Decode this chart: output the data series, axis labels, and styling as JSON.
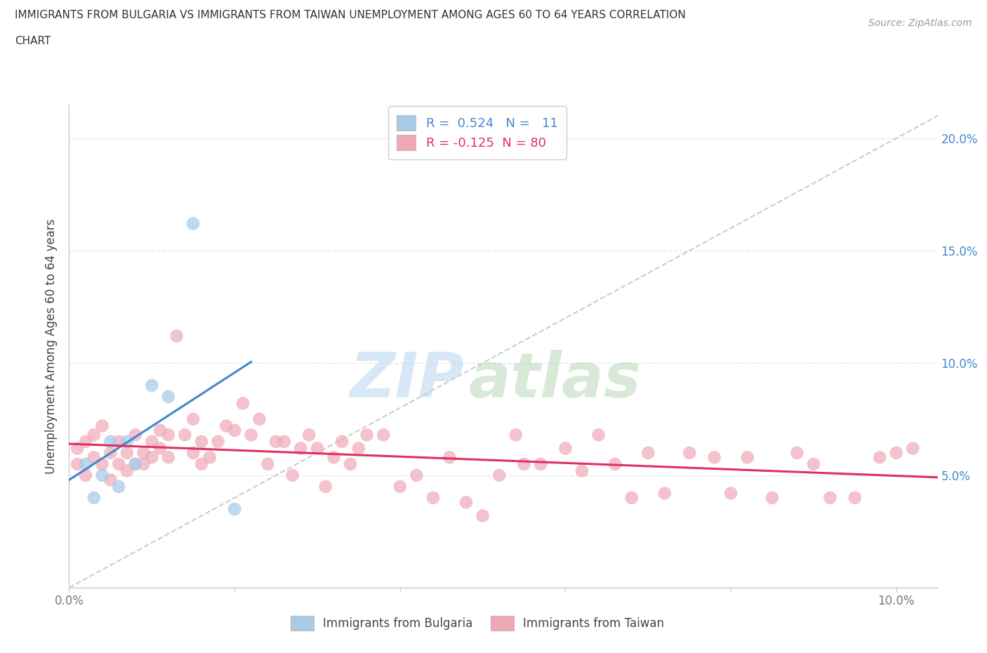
{
  "title_line1": "IMMIGRANTS FROM BULGARIA VS IMMIGRANTS FROM TAIWAN UNEMPLOYMENT AMONG AGES 60 TO 64 YEARS CORRELATION",
  "title_line2": "CHART",
  "source": "Source: ZipAtlas.com",
  "ylabel": "Unemployment Among Ages 60 to 64 years",
  "xlim": [
    0.0,
    0.105
  ],
  "ylim": [
    0.0,
    0.215
  ],
  "ytick_vals": [
    0.0,
    0.05,
    0.1,
    0.15,
    0.2
  ],
  "ytick_labels": [
    "",
    "5.0%",
    "10.0%",
    "15.0%",
    "20.0%"
  ],
  "xtick_vals": [
    0.0,
    0.02,
    0.04,
    0.06,
    0.08,
    0.1
  ],
  "xtick_labels": [
    "0.0%",
    "",
    "",
    "",
    "",
    "10.0%"
  ],
  "bg_color": "#ffffff",
  "grid_color": "#e0e8f0",
  "R_bulgaria": 0.524,
  "N_bulgaria": 11,
  "R_taiwan": -0.125,
  "N_taiwan": 80,
  "bulgaria_fill": "#a8cce8",
  "taiwan_fill": "#f0a8b8",
  "bulgaria_line": "#4488cc",
  "taiwan_line": "#e03060",
  "diagonal_color": "#c0c8d0",
  "bulgaria_x": [
    0.002,
    0.003,
    0.004,
    0.005,
    0.006,
    0.007,
    0.008,
    0.01,
    0.012,
    0.015,
    0.02
  ],
  "bulgaria_y": [
    0.055,
    0.04,
    0.05,
    0.065,
    0.045,
    0.065,
    0.055,
    0.09,
    0.085,
    0.162,
    0.035
  ],
  "taiwan_x": [
    0.001,
    0.001,
    0.002,
    0.002,
    0.003,
    0.003,
    0.004,
    0.004,
    0.005,
    0.005,
    0.006,
    0.006,
    0.007,
    0.007,
    0.008,
    0.008,
    0.009,
    0.009,
    0.01,
    0.01,
    0.011,
    0.011,
    0.012,
    0.012,
    0.013,
    0.014,
    0.015,
    0.015,
    0.016,
    0.016,
    0.017,
    0.018,
    0.019,
    0.02,
    0.021,
    0.022,
    0.023,
    0.024,
    0.025,
    0.026,
    0.027,
    0.028,
    0.029,
    0.03,
    0.031,
    0.032,
    0.033,
    0.034,
    0.035,
    0.036,
    0.038,
    0.04,
    0.042,
    0.044,
    0.046,
    0.048,
    0.05,
    0.052,
    0.054,
    0.055,
    0.057,
    0.06,
    0.062,
    0.064,
    0.066,
    0.068,
    0.07,
    0.072,
    0.075,
    0.078,
    0.08,
    0.082,
    0.085,
    0.088,
    0.09,
    0.092,
    0.095,
    0.098,
    0.1,
    0.102
  ],
  "taiwan_y": [
    0.055,
    0.062,
    0.05,
    0.065,
    0.058,
    0.068,
    0.055,
    0.072,
    0.06,
    0.048,
    0.065,
    0.055,
    0.06,
    0.052,
    0.055,
    0.068,
    0.06,
    0.055,
    0.065,
    0.058,
    0.062,
    0.07,
    0.058,
    0.068,
    0.112,
    0.068,
    0.06,
    0.075,
    0.065,
    0.055,
    0.058,
    0.065,
    0.072,
    0.07,
    0.082,
    0.068,
    0.075,
    0.055,
    0.065,
    0.065,
    0.05,
    0.062,
    0.068,
    0.062,
    0.045,
    0.058,
    0.065,
    0.055,
    0.062,
    0.068,
    0.068,
    0.045,
    0.05,
    0.04,
    0.058,
    0.038,
    0.032,
    0.05,
    0.068,
    0.055,
    0.055,
    0.062,
    0.052,
    0.068,
    0.055,
    0.04,
    0.06,
    0.042,
    0.06,
    0.058,
    0.042,
    0.058,
    0.04,
    0.06,
    0.055,
    0.04,
    0.04,
    0.058,
    0.06,
    0.062
  ]
}
